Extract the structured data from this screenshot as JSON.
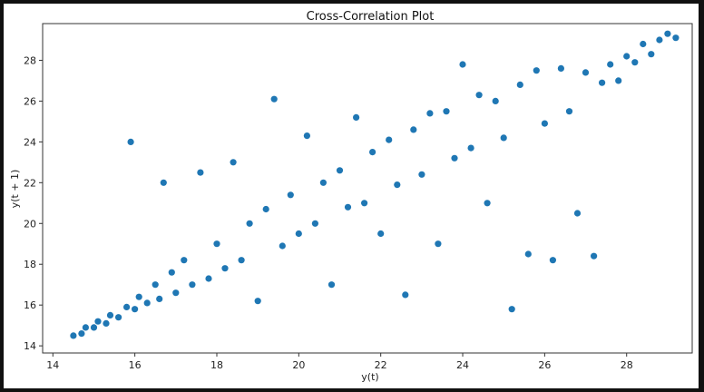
{
  "chart_data": {
    "type": "scatter",
    "title": "Cross-Correlation Plot",
    "xlabel": "y(t)",
    "ylabel": "y(t + 1)",
    "xlim": [
      13.75,
      29.6
    ],
    "ylim": [
      13.65,
      29.8
    ],
    "xticks": [
      14,
      16,
      18,
      20,
      22,
      24,
      26,
      28
    ],
    "yticks": [
      14,
      16,
      18,
      20,
      22,
      24,
      26,
      28
    ],
    "grid": false,
    "color": "#1f77b4",
    "series": [
      {
        "name": "",
        "points": [
          [
            14.5,
            14.5
          ],
          [
            14.7,
            14.6
          ],
          [
            14.8,
            14.9
          ],
          [
            15.0,
            14.9
          ],
          [
            15.1,
            15.2
          ],
          [
            15.3,
            15.1
          ],
          [
            15.4,
            15.5
          ],
          [
            15.6,
            15.4
          ],
          [
            15.8,
            15.9
          ],
          [
            15.9,
            24.0
          ],
          [
            16.0,
            15.8
          ],
          [
            16.1,
            16.4
          ],
          [
            16.3,
            16.1
          ],
          [
            16.5,
            17.0
          ],
          [
            16.6,
            16.3
          ],
          [
            16.7,
            22.0
          ],
          [
            16.9,
            17.6
          ],
          [
            17.0,
            16.6
          ],
          [
            17.2,
            18.2
          ],
          [
            17.4,
            17.0
          ],
          [
            17.6,
            22.5
          ],
          [
            17.8,
            17.3
          ],
          [
            18.0,
            19.0
          ],
          [
            18.2,
            17.8
          ],
          [
            18.4,
            23.0
          ],
          [
            18.6,
            18.2
          ],
          [
            18.8,
            20.0
          ],
          [
            19.0,
            16.2
          ],
          [
            19.2,
            20.7
          ],
          [
            19.4,
            26.1
          ],
          [
            19.6,
            18.9
          ],
          [
            19.8,
            21.4
          ],
          [
            20.0,
            19.5
          ],
          [
            20.2,
            24.3
          ],
          [
            20.4,
            20.0
          ],
          [
            20.6,
            22.0
          ],
          [
            20.8,
            17.0
          ],
          [
            21.0,
            22.6
          ],
          [
            21.2,
            20.8
          ],
          [
            21.4,
            25.2
          ],
          [
            21.6,
            21.0
          ],
          [
            21.8,
            23.5
          ],
          [
            22.0,
            19.5
          ],
          [
            22.2,
            24.1
          ],
          [
            22.4,
            21.9
          ],
          [
            22.6,
            16.5
          ],
          [
            22.8,
            24.6
          ],
          [
            23.0,
            22.4
          ],
          [
            23.2,
            25.4
          ],
          [
            23.4,
            19.0
          ],
          [
            23.6,
            25.5
          ],
          [
            23.8,
            23.2
          ],
          [
            24.0,
            27.8
          ],
          [
            24.2,
            23.7
          ],
          [
            24.4,
            26.3
          ],
          [
            24.6,
            21.0
          ],
          [
            24.8,
            26.0
          ],
          [
            25.0,
            24.2
          ],
          [
            25.2,
            15.8
          ],
          [
            25.4,
            26.8
          ],
          [
            25.6,
            18.5
          ],
          [
            25.8,
            27.5
          ],
          [
            26.0,
            24.9
          ],
          [
            26.2,
            18.2
          ],
          [
            26.4,
            27.6
          ],
          [
            26.6,
            25.5
          ],
          [
            26.8,
            20.5
          ],
          [
            27.0,
            27.4
          ],
          [
            27.2,
            18.4
          ],
          [
            27.4,
            26.9
          ],
          [
            27.6,
            27.8
          ],
          [
            27.8,
            27.0
          ],
          [
            28.0,
            28.2
          ],
          [
            28.2,
            27.9
          ],
          [
            28.4,
            28.8
          ],
          [
            28.6,
            28.3
          ],
          [
            28.8,
            29.0
          ],
          [
            29.0,
            29.3
          ],
          [
            29.2,
            29.1
          ]
        ]
      }
    ]
  }
}
